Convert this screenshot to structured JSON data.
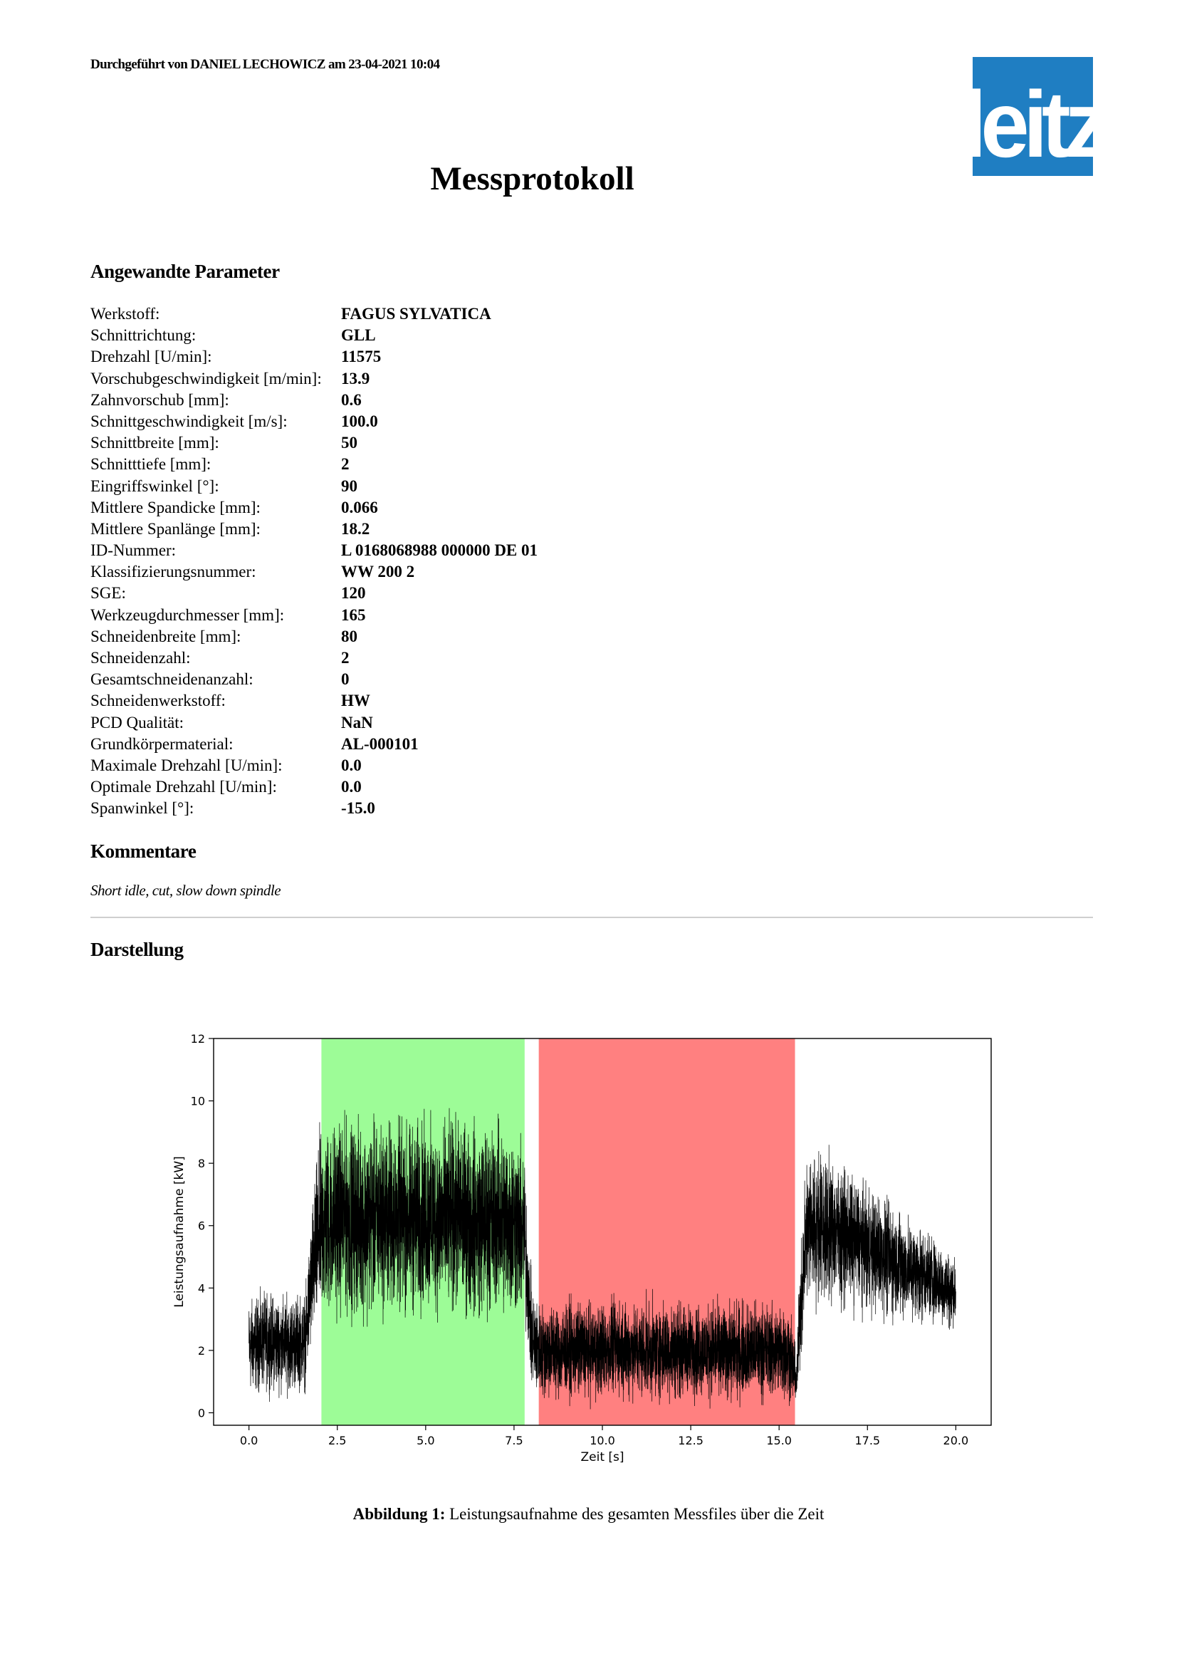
{
  "header": {
    "performed_by": "Durchgeführt von DANIEL LECHOWICZ am 23-04-2021 10:04",
    "logo_text": "leitz",
    "logo_color": "#1f7ec2"
  },
  "title": "Messprotokoll",
  "parameters_heading": "Angewandte Parameter",
  "parameters": [
    {
      "label": "Werkstoff:",
      "value": "FAGUS SYLVATICA"
    },
    {
      "label": "Schnittrichtung:",
      "value": "GLL"
    },
    {
      "label": "Drehzahl [U/min]:",
      "value": "11575"
    },
    {
      "label": "Vorschubgeschwindigkeit [m/min]:",
      "value": "13.9"
    },
    {
      "label": "Zahnvorschub [mm]:",
      "value": "0.6"
    },
    {
      "label": "Schnittgeschwindigkeit [m/s]:",
      "value": "100.0"
    },
    {
      "label": "Schnittbreite [mm]:",
      "value": "50"
    },
    {
      "label": "Schnitttiefe [mm]:",
      "value": "2"
    },
    {
      "label": "Eingriffswinkel [°]:",
      "value": "90"
    },
    {
      "label": "Mittlere Spandicke [mm]:",
      "value": "0.066"
    },
    {
      "label": "Mittlere Spanlänge [mm]:",
      "value": "18.2"
    },
    {
      "label": "ID-Nummer:",
      "value": "L 0168068988 000000 DE 01"
    },
    {
      "label": "Klassifizierungsnummer:",
      "value": "WW 200 2"
    },
    {
      "label": "SGE:",
      "value": "120"
    },
    {
      "label": "Werkzeugdurchmesser [mm]:",
      "value": "165"
    },
    {
      "label": "Schneidenbreite [mm]:",
      "value": "80"
    },
    {
      "label": "Schneidenzahl:",
      "value": "2"
    },
    {
      "label": "Gesamtschneidenanzahl:",
      "value": "0"
    },
    {
      "label": "Schneidenwerkstoff:",
      "value": "HW"
    },
    {
      "label": "PCD Qualität:",
      "value": "NaN"
    },
    {
      "label": "Grundkörpermaterial:",
      "value": "AL-000101"
    },
    {
      "label": "Maximale Drehzahl [U/min]:",
      "value": "0.0"
    },
    {
      "label": "Optimale Drehzahl [U/min]:",
      "value": "0.0"
    },
    {
      "label": "Spanwinkel [°]:",
      "value": "-15.0"
    }
  ],
  "comments_heading": "Kommentare",
  "comment": "Short idle, cut, slow down spindle",
  "display_heading": "Darstellung",
  "caption": {
    "label": "Abbildung 1:",
    "text": " Leistungsaufnahme des gesamten Messfiles über die Zeit"
  },
  "chart_data": {
    "type": "line",
    "title": "",
    "xlabel": "Zeit [s]",
    "ylabel": "Leistungsaufnahme [kW]",
    "xlim": [
      -1.0,
      21.0
    ],
    "ylim": [
      -0.4,
      12.0
    ],
    "xticks": [
      "0.0",
      "2.5",
      "5.0",
      "7.5",
      "10.0",
      "12.5",
      "15.0",
      "17.5",
      "20.0"
    ],
    "yticks": [
      "0",
      "2",
      "4",
      "6",
      "8",
      "10",
      "12"
    ],
    "grid": false,
    "line_color": "#000000",
    "regions": [
      {
        "x0": 2.05,
        "x1": 7.8,
        "color": "#9dfc97"
      },
      {
        "x0": 8.2,
        "x1": 15.45,
        "color": "#ff8080"
      }
    ],
    "series": [
      {
        "x": [
          0.0,
          0.5,
          1.0,
          1.6,
          1.7,
          1.8,
          2.0,
          2.5,
          3.0,
          3.5,
          4.0,
          4.5,
          5.0,
          5.5,
          6.0,
          6.5,
          7.0,
          7.5,
          7.8,
          7.9,
          8.0,
          8.2,
          8.5,
          9.0,
          9.5,
          10.0,
          10.5,
          11.0,
          11.5,
          12.0,
          12.5,
          13.0,
          13.5,
          14.0,
          14.5,
          15.0,
          15.3,
          15.5,
          15.6,
          15.8,
          16.0,
          16.5,
          17.0,
          17.5,
          18.0,
          18.5,
          19.0,
          19.5,
          20.0
        ],
        "y": [
          2.1,
          2.3,
          2.2,
          2.3,
          3.5,
          4.5,
          5.9,
          6.3,
          6.2,
          6.2,
          6.3,
          6.2,
          6.3,
          6.2,
          6.3,
          6.1,
          6.3,
          6.1,
          5.6,
          4.0,
          2.4,
          2.0,
          2.0,
          2.0,
          2.0,
          2.0,
          2.1,
          2.0,
          2.0,
          2.0,
          2.0,
          2.0,
          2.0,
          2.0,
          2.0,
          2.0,
          1.9,
          1.0,
          3.5,
          6.0,
          6.0,
          5.9,
          5.6,
          5.3,
          5.0,
          4.7,
          4.5,
          4.2,
          3.8
        ],
        "noise_amplitude": [
          0.8,
          0.8,
          0.8,
          0.8,
          1.0,
          1.2,
          1.6,
          1.6,
          1.6,
          1.6,
          1.6,
          1.6,
          1.6,
          1.6,
          1.6,
          1.6,
          1.6,
          1.6,
          1.4,
          1.0,
          0.9,
          0.8,
          0.8,
          0.8,
          0.8,
          0.8,
          0.8,
          0.8,
          0.8,
          0.8,
          0.8,
          0.8,
          0.8,
          0.8,
          0.8,
          0.8,
          0.8,
          0.4,
          1.0,
          1.3,
          1.3,
          1.2,
          1.1,
          1.0,
          1.0,
          0.9,
          0.8,
          0.7,
          0.6
        ]
      }
    ]
  }
}
